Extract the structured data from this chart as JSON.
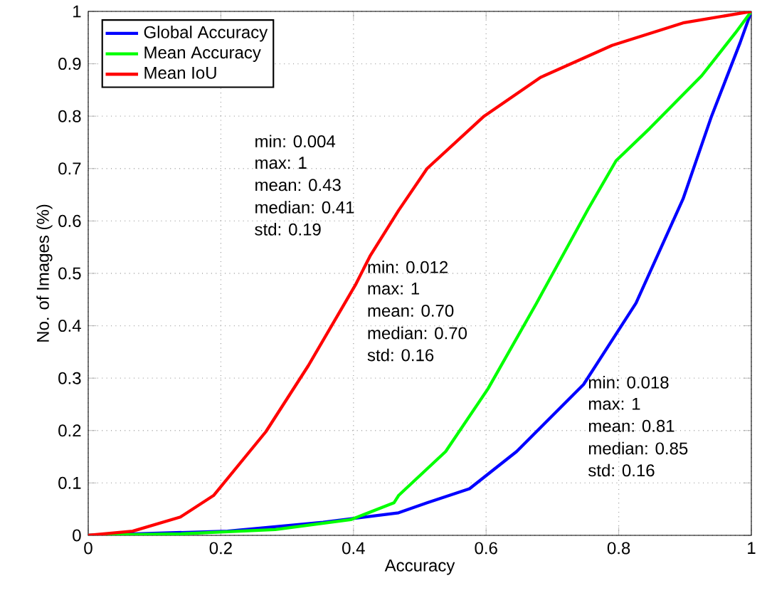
{
  "chart_data": {
    "type": "line",
    "xlabel": "Accuracy",
    "ylabel": "No. of Images (%)",
    "xlim": [
      0,
      1
    ],
    "ylim": [
      0,
      1
    ],
    "xticks": [
      0,
      0.2,
      0.4,
      0.6,
      0.8,
      1
    ],
    "yticks": [
      0,
      0.1,
      0.2,
      0.3,
      0.4,
      0.5,
      0.6,
      0.7,
      0.8,
      0.9,
      1
    ],
    "grid": true,
    "legend": "top left",
    "marker": "none",
    "line_style": "solid",
    "series": [
      {
        "name": "Global Accuracy",
        "color": "#0000ff",
        "x": [
          0,
          0.21,
          0.354,
          0.468,
          0.511,
          0.575,
          0.646,
          0.747,
          0.826,
          0.897,
          0.94,
          0.983,
          1
        ],
        "values": [
          0,
          0.008,
          0.025,
          0.043,
          0.062,
          0.089,
          0.16,
          0.288,
          0.443,
          0.642,
          0.8,
          0.94,
          1
        ]
      },
      {
        "name": "Mean Accuracy",
        "color": "#00ff00",
        "x": [
          0,
          0.14,
          0.282,
          0.396,
          0.461,
          0.468,
          0.539,
          0.603,
          0.676,
          0.754,
          0.796,
          0.847,
          0.925,
          0.976,
          1
        ],
        "values": [
          0,
          0.003,
          0.011,
          0.03,
          0.062,
          0.076,
          0.16,
          0.28,
          0.443,
          0.623,
          0.715,
          0.777,
          0.877,
          0.959,
          1
        ]
      },
      {
        "name": "Mean IoU",
        "color": "#ff0000",
        "x": [
          0,
          0.067,
          0.139,
          0.189,
          0.268,
          0.332,
          0.403,
          0.425,
          0.468,
          0.511,
          0.597,
          0.682,
          0.79,
          0.897,
          1
        ],
        "values": [
          0,
          0.008,
          0.035,
          0.076,
          0.198,
          0.324,
          0.478,
          0.533,
          0.62,
          0.7,
          0.8,
          0.874,
          0.935,
          0.978,
          1
        ]
      }
    ],
    "annotations": [
      "min: 0.004",
      "max: 1",
      "mean: 0.43",
      "median: 0.41",
      "std: 0.19",
      "min: 0.012",
      "max: 1",
      "mean: 0.70",
      "median: 0.70",
      "std: 0.16",
      "min: 0.018",
      "max: 1",
      "mean: 0.81",
      "median: 0.85",
      "std: 0.16"
    ]
  }
}
